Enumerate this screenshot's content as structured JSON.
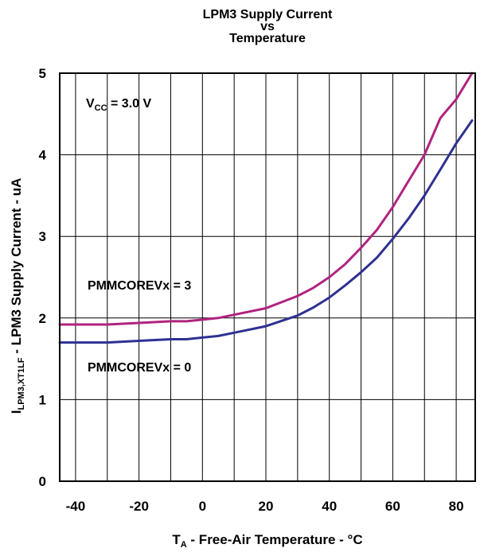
{
  "chart_data": {
    "type": "line",
    "title_lines": [
      "LPM3 Supply Current",
      "vs",
      "Temperature"
    ],
    "xlabel": {
      "main": "T",
      "sub": "A",
      "rest": " - Free-Air Temperature - °C"
    },
    "ylabel": {
      "main": "I",
      "sub": "LPM3,XT1LF",
      "rest": " - LPM3 Supply Current  - uA"
    },
    "xlim": [
      -45,
      86
    ],
    "ylim": [
      0,
      5
    ],
    "x_ticks": [
      -40,
      -20,
      0,
      20,
      40,
      60,
      80
    ],
    "y_ticks": [
      0,
      1,
      2,
      3,
      4,
      5
    ],
    "x_tick_labels": [
      "-40",
      "-20",
      "0",
      "20",
      "40",
      "60",
      "80"
    ],
    "y_tick_labels": [
      "0",
      "1",
      "2",
      "3",
      "4",
      "5"
    ],
    "grid": true,
    "annotations": {
      "vcc": {
        "main": "V",
        "sub": "CC",
        "rest": " = 3.0 V"
      },
      "series_labels": [
        "PMMCOREVx = 3",
        "PMMCOREVx = 0"
      ]
    },
    "series": [
      {
        "color": "#b0237f",
        "x": [
          -45,
          -30,
          -20,
          -10,
          -5,
          0,
          5,
          10,
          20,
          30,
          35,
          40,
          45,
          50,
          55,
          60,
          65,
          70,
          75,
          80,
          85
        ],
        "y": [
          1.92,
          1.92,
          1.94,
          1.96,
          1.96,
          1.98,
          2.0,
          2.04,
          2.12,
          2.27,
          2.37,
          2.5,
          2.66,
          2.86,
          3.08,
          3.36,
          3.68,
          4.0,
          4.45,
          4.68,
          5.0
        ]
      },
      {
        "color": "#2e3192",
        "x": [
          -45,
          -30,
          -20,
          -10,
          -5,
          0,
          5,
          10,
          20,
          30,
          35,
          40,
          45,
          50,
          55,
          60,
          65,
          70,
          75,
          80,
          85
        ],
        "y": [
          1.7,
          1.7,
          1.72,
          1.74,
          1.74,
          1.76,
          1.78,
          1.82,
          1.9,
          2.03,
          2.13,
          2.25,
          2.4,
          2.56,
          2.74,
          2.97,
          3.22,
          3.5,
          3.82,
          4.14,
          4.42
        ]
      }
    ]
  }
}
